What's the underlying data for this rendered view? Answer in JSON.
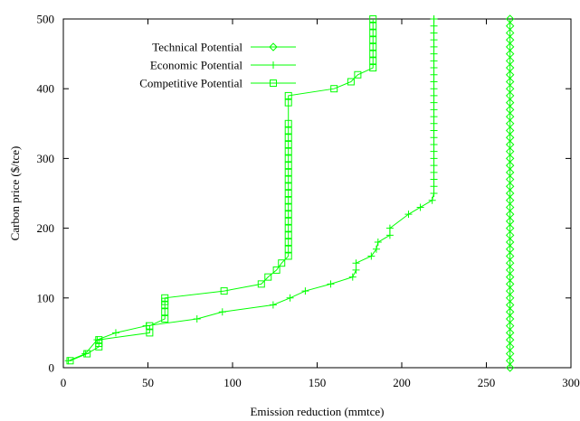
{
  "chart_data": {
    "type": "scatter",
    "xlabel": "Emission reduction (mmtce)",
    "ylabel": "Carbon price ($/tce)",
    "xlim": [
      0,
      300
    ],
    "ylim": [
      0,
      500
    ],
    "xticks": [
      0,
      50,
      100,
      150,
      200,
      250,
      300
    ],
    "yticks": [
      0,
      100,
      200,
      300,
      400,
      500
    ],
    "grid": false,
    "legend_position": "top-left",
    "series": [
      {
        "name": "Technical Potential",
        "marker": "diamond",
        "color": "#00ff00",
        "x": [
          264,
          264,
          264,
          264,
          264,
          264,
          264,
          264,
          264,
          264,
          264,
          264,
          264,
          264,
          264,
          264,
          264,
          264,
          264,
          264,
          264,
          264,
          264,
          264,
          264,
          264,
          264,
          264,
          264,
          264,
          264,
          264,
          264,
          264,
          264,
          264,
          264,
          264,
          264,
          264,
          264,
          264,
          264,
          264,
          264,
          264,
          264,
          264,
          264,
          264,
          264
        ],
        "y": [
          0,
          10,
          20,
          30,
          40,
          50,
          60,
          70,
          80,
          90,
          100,
          110,
          120,
          130,
          140,
          150,
          160,
          170,
          180,
          190,
          200,
          210,
          220,
          230,
          240,
          250,
          260,
          270,
          280,
          290,
          300,
          310,
          320,
          330,
          340,
          350,
          360,
          370,
          380,
          390,
          400,
          410,
          420,
          430,
          440,
          450,
          460,
          470,
          480,
          490,
          500
        ]
      },
      {
        "name": "Economic Potential",
        "marker": "plus",
        "color": "#00ff00",
        "x": [
          3,
          13,
          20,
          31,
          49,
          79,
          94,
          124,
          134,
          143,
          158,
          171,
          173,
          173,
          182,
          185,
          186,
          193,
          193,
          204,
          211,
          218,
          219,
          219,
          219,
          219,
          219,
          219,
          219,
          219,
          219,
          219,
          219,
          219,
          219,
          219,
          219,
          219,
          219,
          219,
          219,
          219,
          219,
          219,
          219,
          219,
          219,
          219,
          219,
          219,
          219
        ],
        "y": [
          10,
          20,
          40,
          50,
          60,
          70,
          80,
          90,
          100,
          110,
          120,
          130,
          140,
          150,
          160,
          170,
          180,
          190,
          200,
          220,
          230,
          240,
          250,
          260,
          270,
          280,
          290,
          300,
          310,
          320,
          330,
          340,
          350,
          360,
          370,
          380,
          390,
          400,
          410,
          420,
          430,
          440,
          450,
          460,
          470,
          480,
          490,
          500,
          500,
          500,
          500
        ]
      },
      {
        "name": "Competitive Potential",
        "marker": "square",
        "color": "#00ff00",
        "x": [
          4,
          14,
          21,
          21,
          21,
          51,
          51,
          60,
          60,
          60,
          60,
          60,
          95,
          117,
          121,
          126,
          129,
          133,
          133,
          133,
          133,
          133,
          133,
          133,
          133,
          133,
          133,
          133,
          133,
          133,
          133,
          133,
          133,
          133,
          133,
          133,
          133,
          133,
          133,
          160,
          170,
          174,
          183,
          183,
          183,
          183,
          183,
          183,
          183,
          183
        ],
        "y": [
          10,
          20,
          30,
          35,
          40,
          50,
          60,
          70,
          80,
          90,
          95,
          100,
          110,
          120,
          130,
          140,
          150,
          160,
          170,
          180,
          190,
          200,
          210,
          220,
          230,
          240,
          250,
          260,
          270,
          280,
          290,
          300,
          310,
          320,
          330,
          340,
          350,
          380,
          390,
          400,
          410,
          420,
          430,
          440,
          450,
          460,
          470,
          480,
          490,
          500
        ]
      }
    ]
  }
}
